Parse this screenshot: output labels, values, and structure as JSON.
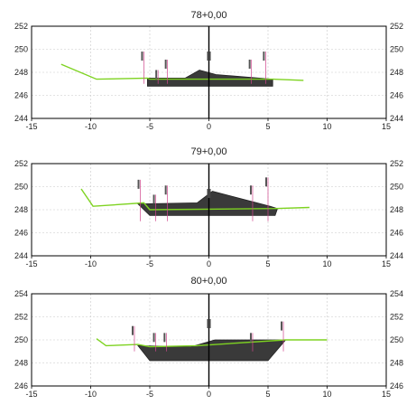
{
  "colors": {
    "ground": "#7ed321",
    "fill": "#3a3a3a",
    "axis": "#000000",
    "grid": "#c8c8c8",
    "marker": "#d0458c"
  },
  "sections": [
    {
      "title": "78+0,00",
      "xlim": [
        -15,
        15
      ],
      "ylim": [
        244,
        252
      ],
      "xticks": [
        "-15",
        "-10",
        "-5",
        "0",
        "5",
        "10",
        "15"
      ],
      "yticks": [
        "252",
        "250",
        "248",
        "246",
        "244"
      ],
      "ground": [
        [
          -12.5,
          248.7
        ],
        [
          -9.5,
          247.4
        ],
        [
          -5.2,
          247.5
        ],
        [
          -5.0,
          247.4
        ],
        [
          5.4,
          247.4
        ],
        [
          8.0,
          247.3
        ]
      ],
      "fill": [
        [
          -5.2,
          247.5
        ],
        [
          -2.0,
          247.5
        ],
        [
          -0.8,
          248.2
        ],
        [
          0.6,
          247.8
        ],
        [
          5.4,
          247.4
        ],
        [
          5.4,
          246.8
        ],
        [
          -5.2,
          246.8
        ]
      ],
      "markers": [
        [
          -5.5,
          249.8
        ],
        [
          -4.3,
          248.2
        ],
        [
          -3.5,
          249.1
        ],
        [
          3.6,
          249.1
        ],
        [
          4.8,
          249.8
        ]
      ]
    },
    {
      "title": "79+0,00",
      "xlim": [
        -15,
        15
      ],
      "ylim": [
        244,
        252
      ],
      "xticks": [
        "-15",
        "-10",
        "-5",
        "0",
        "5",
        "10",
        "15"
      ],
      "yticks": [
        "252",
        "250",
        "248",
        "246",
        "244"
      ],
      "ground": [
        [
          -10.8,
          249.8
        ],
        [
          -9.8,
          248.3
        ],
        [
          -5.5,
          248.6
        ],
        [
          -5.0,
          248.0
        ],
        [
          5.6,
          248.1
        ],
        [
          8.5,
          248.2
        ]
      ],
      "fill": [
        [
          -6.0,
          248.5
        ],
        [
          -1.0,
          248.6
        ],
        [
          0.3,
          249.6
        ],
        [
          5.2,
          248.3
        ],
        [
          5.8,
          248.1
        ],
        [
          5.6,
          247.5
        ],
        [
          -5.0,
          247.5
        ]
      ],
      "markers": [
        [
          -5.8,
          250.6
        ],
        [
          -4.5,
          249.3
        ],
        [
          -3.5,
          250.1
        ],
        [
          3.7,
          250.1
        ],
        [
          5.0,
          250.8
        ]
      ]
    },
    {
      "title": "80+0,00",
      "xlim": [
        -15,
        15
      ],
      "ylim": [
        246,
        254
      ],
      "xticks": [
        "-15",
        "-10",
        "-5",
        "0",
        "5",
        "10",
        "15"
      ],
      "yticks": [
        "254",
        "252",
        "250",
        "248",
        "246"
      ],
      "ground": [
        [
          -9.5,
          250.1
        ],
        [
          -8.7,
          249.5
        ],
        [
          -6.0,
          249.6
        ],
        [
          -5.0,
          249.4
        ],
        [
          -1.0,
          249.5
        ],
        [
          6.5,
          250.0
        ],
        [
          10.0,
          250.0
        ]
      ],
      "fill": [
        [
          -6.0,
          249.5
        ],
        [
          -1.5,
          249.4
        ],
        [
          0.5,
          250.0
        ],
        [
          6.5,
          250.0
        ],
        [
          5.0,
          248.2
        ],
        [
          -5.0,
          248.2
        ]
      ],
      "markers": [
        [
          -6.3,
          251.2
        ],
        [
          -4.5,
          250.6
        ],
        [
          -3.6,
          250.6
        ],
        [
          3.7,
          250.6
        ],
        [
          6.3,
          251.6
        ]
      ]
    }
  ]
}
